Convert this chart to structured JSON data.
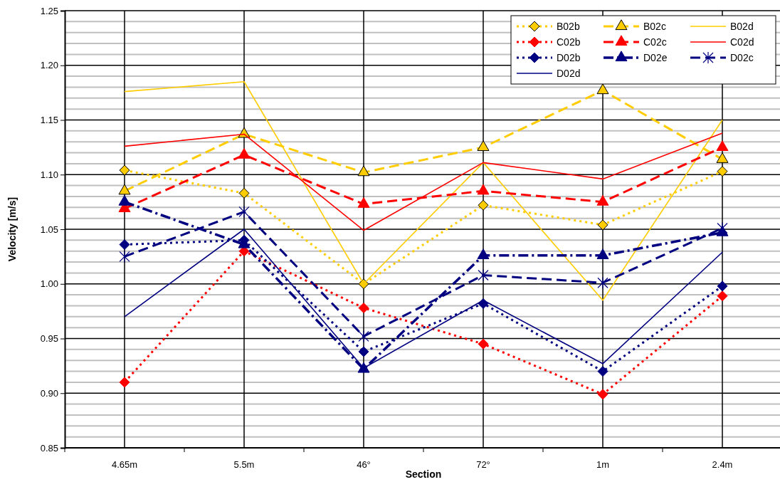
{
  "chart_data": {
    "type": "line",
    "xlabel": "Section",
    "ylabel": "Velocity [m/s]",
    "categories": [
      "4.65m",
      "5.5m",
      "46°",
      "72°",
      "1m",
      "2.4m"
    ],
    "ylim": [
      0.85,
      1.25
    ],
    "yticks": [
      0.85,
      {
        "value": 0.9,
        "label": "0.90"
      },
      0.95,
      {
        "value": 1,
        "label": "1.00"
      },
      1.05,
      {
        "value": 1.1,
        "label": "1.10"
      },
      1.15,
      {
        "value": 1.2,
        "label": "1.20"
      },
      1.25
    ],
    "grid": true,
    "legend": "top right",
    "series": [
      {
        "name": "B02b",
        "color": "#ffcc00",
        "marker": "diamond",
        "line_style": "dotted",
        "values": [
          1.104,
          1.083,
          1.0,
          1.072,
          1.054,
          1.103
        ]
      },
      {
        "name": "B02c",
        "color": "#ffcc00",
        "marker": "triangle",
        "line_style": "dashed",
        "values": [
          1.085,
          1.137,
          1.102,
          1.125,
          1.177,
          1.114
        ]
      },
      {
        "name": "B02d",
        "color": "#ffcc00",
        "marker": "none",
        "line_style": "solid",
        "values": [
          1.176,
          1.185,
          1.0,
          1.111,
          0.985,
          1.15
        ]
      },
      {
        "name": "C02b",
        "color": "#ff0000",
        "marker": "diamond",
        "line_style": "dotted",
        "values": [
          0.91,
          1.03,
          0.978,
          0.945,
          0.899,
          0.989
        ]
      },
      {
        "name": "C02c",
        "color": "#ff0000",
        "marker": "triangle",
        "line_style": "dashed",
        "values": [
          1.069,
          1.118,
          1.073,
          1.085,
          1.075,
          1.125
        ]
      },
      {
        "name": "C02d",
        "color": "#ff0000",
        "marker": "none",
        "line_style": "solid",
        "values": [
          1.126,
          1.137,
          1.049,
          1.111,
          1.096,
          1.138
        ]
      },
      {
        "name": "D02b",
        "color": "#000080",
        "marker": "diamond",
        "line_style": "dotted",
        "values": [
          1.036,
          1.04,
          0.938,
          0.982,
          0.92,
          0.998
        ]
      },
      {
        "name": "D02e",
        "color": "#000080",
        "marker": "triangle",
        "line_style": "dashdot",
        "values": [
          1.075,
          1.036,
          0.922,
          1.026,
          1.026,
          1.047
        ]
      },
      {
        "name": "D02c",
        "color": "#000080",
        "marker": "cross",
        "line_style": "dashed",
        "values": [
          1.025,
          1.066,
          0.952,
          1.008,
          1.001,
          1.051
        ]
      },
      {
        "name": "D02d",
        "color": "#000080",
        "marker": "none",
        "line_style": "solid",
        "values": [
          0.97,
          1.05,
          0.923,
          0.985,
          0.927,
          1.029
        ]
      }
    ]
  }
}
